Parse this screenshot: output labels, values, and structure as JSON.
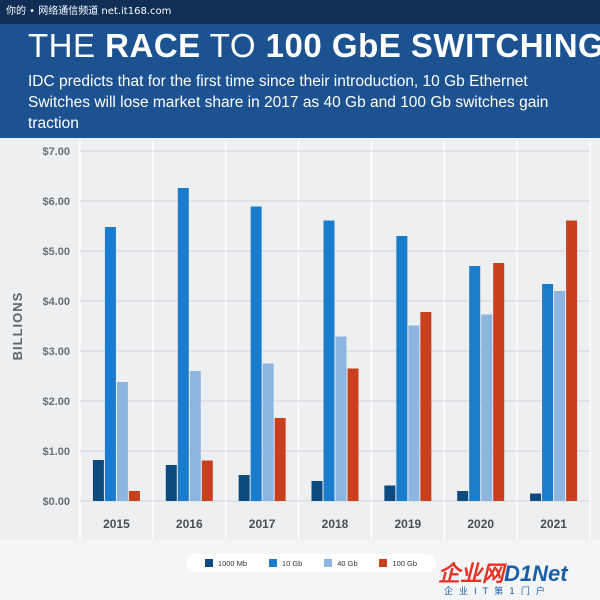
{
  "watermark": "你的 • 网络通信频道 net.it168.com",
  "header": {
    "title_light_1": "THE ",
    "title_bold_1": "RACE",
    "title_light_2": " TO ",
    "title_bold_2": "100 GbE SWITCHING",
    "subtitle": "IDC predicts that for the first time since their introduction, 10 Gb Ethernet Switches will lose market share in 2017 as 40 Gb and 100 Gb switches gain traction"
  },
  "colors": {
    "header_bg": "#1d5291",
    "chart_bg": "#edeff1",
    "s1000mb": "#0d4a80",
    "s10gb": "#1a7ccc",
    "s40gb": "#8cb6e0",
    "s100gb": "#c8401e"
  },
  "chart_data": {
    "type": "bar",
    "categories": [
      "2015",
      "2016",
      "2017",
      "2018",
      "2019",
      "2020",
      "2021"
    ],
    "series": [
      {
        "name": "1000 Mb",
        "color": "#0d4a80",
        "values": [
          0.82,
          0.72,
          0.52,
          0.4,
          0.31,
          0.2,
          0.15
        ]
      },
      {
        "name": "10 Gb",
        "color": "#1a7ccc",
        "values": [
          5.48,
          6.26,
          5.89,
          5.61,
          5.3,
          4.7,
          4.34
        ]
      },
      {
        "name": "40 Gb",
        "color": "#8cb6e0",
        "values": [
          2.38,
          2.6,
          2.75,
          3.29,
          3.51,
          3.73,
          4.2
        ]
      },
      {
        "name": "100 Gb",
        "color": "#c8401e",
        "values": [
          0.2,
          0.81,
          1.66,
          2.65,
          3.78,
          4.76,
          5.61
        ]
      }
    ],
    "ylabel": "BILLIONS",
    "y_ticks": [
      "$0.00",
      "$1.00",
      "$2.00",
      "$3.00",
      "$4.00",
      "$5.00",
      "$6.00",
      "$7.00"
    ],
    "ylim": [
      0,
      7
    ],
    "grid": true,
    "legend_position": "bottom"
  },
  "brand": {
    "name_red": "企业网",
    "name_blue": "D1Net",
    "tagline": "企业IT第1门户"
  }
}
